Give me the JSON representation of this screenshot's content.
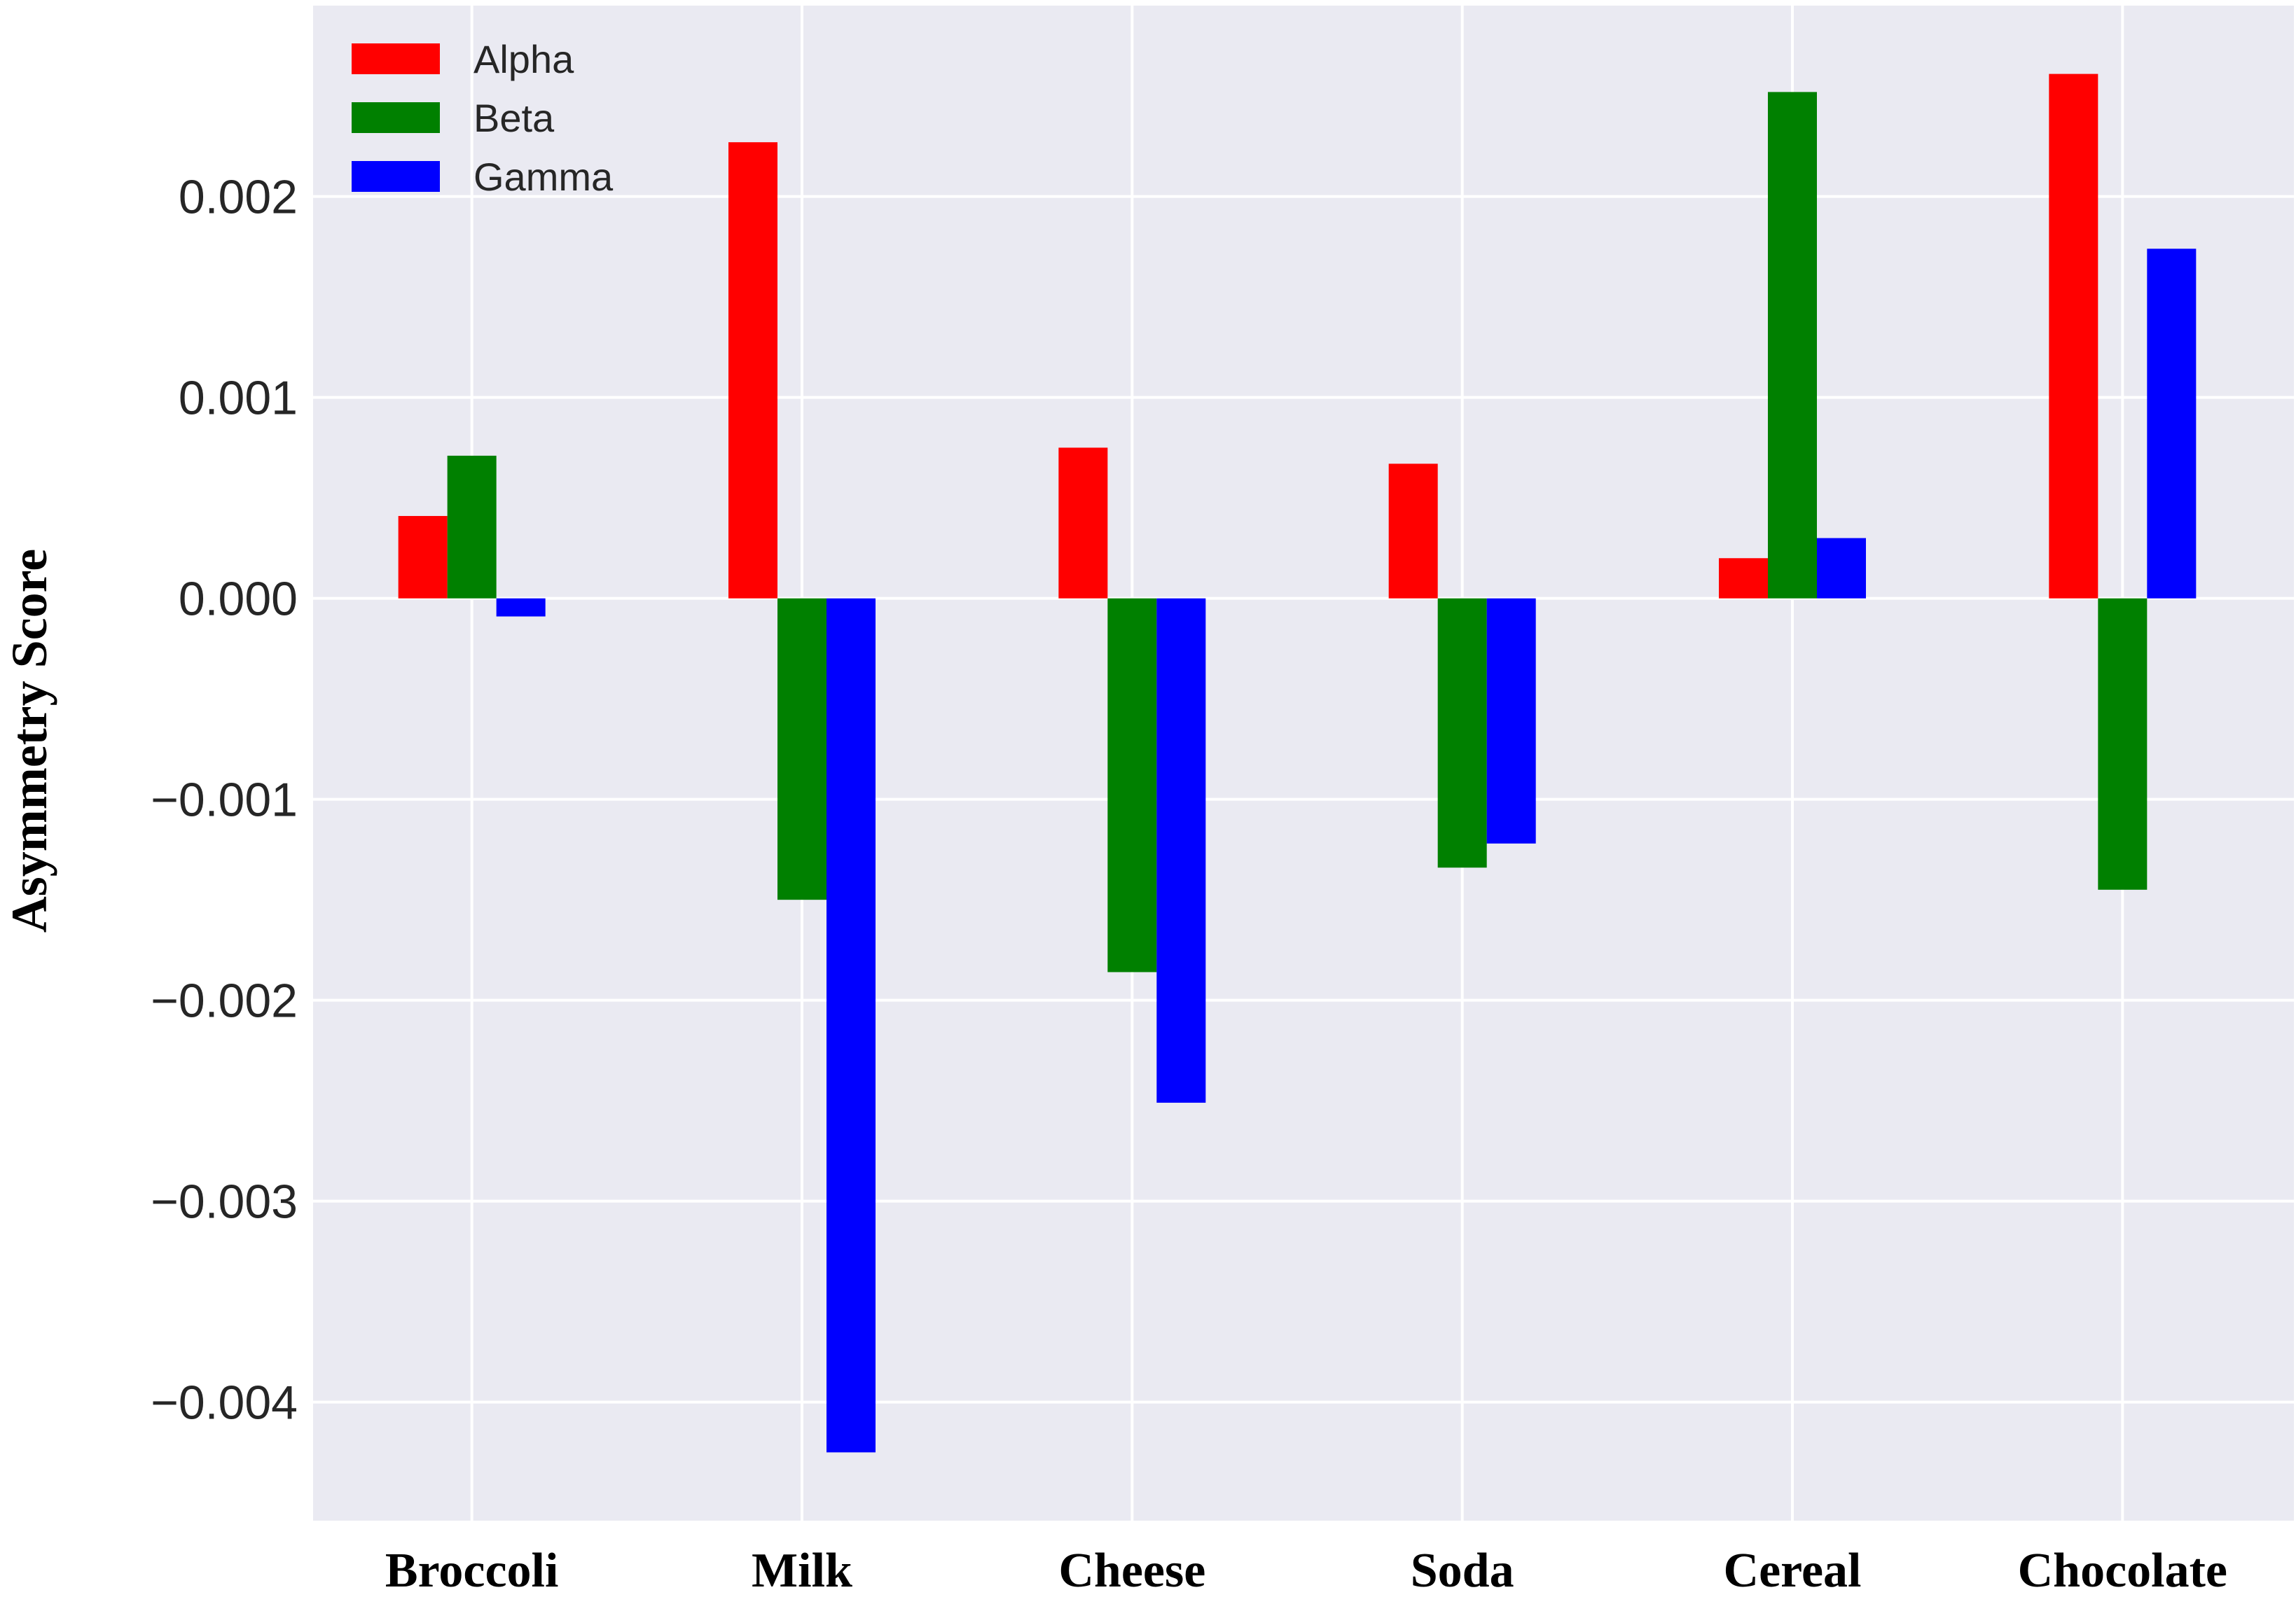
{
  "chart_data": {
    "type": "bar",
    "title": "",
    "xlabel": "",
    "ylabel": "Asymmetry Score",
    "categories": [
      "Broccoli",
      "Milk",
      "Cheese",
      "Soda",
      "Cereal",
      "Chocolate"
    ],
    "series": [
      {
        "name": "Alpha",
        "color": "#ff0000",
        "values": [
          0.00041,
          0.00227,
          0.00075,
          0.00067,
          0.0002,
          0.00261
        ]
      },
      {
        "name": "Beta",
        "color": "#008000",
        "values": [
          0.00071,
          -0.0015,
          -0.00186,
          -0.00134,
          0.00252,
          -0.00145
        ]
      },
      {
        "name": "Gamma",
        "color": "#0000ff",
        "values": [
          -9e-05,
          -0.00425,
          -0.00251,
          -0.00122,
          0.0003,
          0.00174
        ]
      }
    ],
    "yticks": [
      0.002,
      0.001,
      0.0,
      -0.001,
      -0.002,
      -0.003,
      -0.004
    ],
    "ytick_labels": [
      "0.002",
      "0.001",
      "0.000",
      "−0.001",
      "−0.002",
      "−0.003",
      "−0.004"
    ],
    "ylim": [
      -0.00459,
      0.00295
    ],
    "grid": true,
    "legend_position": "top-left",
    "background_color": "#eaeaf2",
    "grid_color": "#ffffff"
  }
}
